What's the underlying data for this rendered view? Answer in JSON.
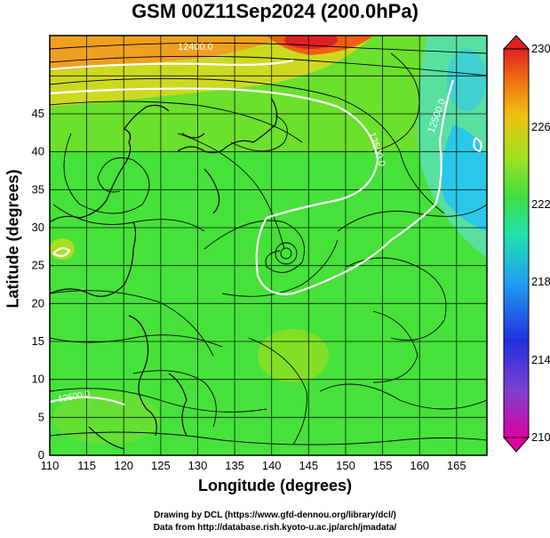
{
  "title": "GSM 00Z11Sep2024 (200.0hPa)",
  "x_axis": {
    "label": "Longitude (degrees)",
    "ticks": [
      "110",
      "115",
      "120",
      "125",
      "130",
      "135",
      "140",
      "145",
      "150",
      "155",
      "160",
      "165"
    ]
  },
  "y_axis": {
    "label": "Latitude  (degrees)",
    "ticks": [
      "0",
      "5",
      "10",
      "15",
      "20",
      "25",
      "30",
      "35",
      "40",
      "45"
    ]
  },
  "colorbar": {
    "ticks": [
      "230",
      "226",
      "222",
      "218",
      "214",
      "210"
    ],
    "range": [
      210,
      230
    ]
  },
  "contour_labels": [
    "12500.0",
    "12400.0"
  ],
  "credits": {
    "line1": "Drawing by DCL (https://www.gfd-dennou.org/library/dcl/)",
    "line2": "Data from http://database.rish.kyoto-u.ac.jp/arch/jmadata/"
  },
  "colors": {
    "warm": "#f0a020",
    "green": "#3ee23e",
    "cyan": "#28c8e8",
    "contour": "#ffffff"
  }
}
